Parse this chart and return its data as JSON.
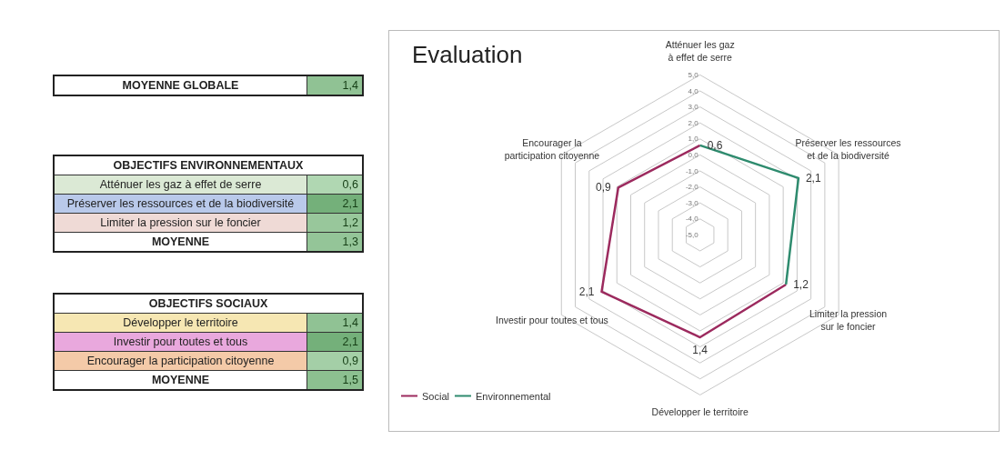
{
  "chart_data": [
    {
      "type": "other",
      "categories": [
        "MOYENNE GLOBALE"
      ],
      "values": [
        1.4
      ],
      "value_labels": [
        "1,4"
      ]
    },
    {
      "type": "other",
      "title": "OBJECTIFS ENVIRONNEMENTAUX",
      "categories": [
        "Atténuer les gaz à effet de serre",
        "Préserver les ressources et de la biodiversité",
        "Limiter la pression sur le foncier",
        "MOYENNE"
      ],
      "values": [
        0.6,
        2.1,
        1.2,
        1.3
      ],
      "value_labels": [
        "0,6",
        "2,1",
        "1,2",
        "1,3"
      ]
    },
    {
      "type": "other",
      "title": "OBJECTIFS SOCIAUX",
      "categories": [
        "Développer le territoire",
        "Investir pour toutes et tous",
        "Encourager la participation citoyenne",
        "MOYENNE"
      ],
      "values": [
        1.4,
        2.1,
        0.9,
        1.5
      ],
      "value_labels": [
        "1,4",
        "2,1",
        "0,9",
        "1,5"
      ]
    },
    {
      "type": "radar",
      "title": "Evaluation",
      "categories": [
        "Atténuer les gaz à effet de serre",
        "Préserver les ressources et de la biodiversité",
        "Limiter la pression sur le foncier",
        "Développer le territoire",
        "Investir pour toutes et tous",
        "Encourager la participation citoyenne"
      ],
      "series": [
        {
          "name": "Social",
          "color": "#9c2a5e",
          "values": [
            0.6,
            null,
            1.2,
            1.4,
            2.1,
            0.9
          ],
          "value_labels": [
            null,
            null,
            null,
            "1,4",
            "2,1",
            "0,9"
          ]
        },
        {
          "name": "Environnemental",
          "color": "#2e8b6e",
          "values": [
            0.6,
            2.1,
            1.2,
            null,
            null,
            null
          ],
          "value_labels": [
            "0,6",
            "2,1",
            "1,2",
            null,
            null,
            null
          ]
        }
      ],
      "ylim": [
        -5,
        5
      ],
      "yticks": [
        {
          "value": -5,
          "label": "-5,0"
        },
        {
          "value": -4,
          "label": "-4,0"
        },
        {
          "value": -3,
          "label": "-3,0"
        },
        {
          "value": -2,
          "label": "-2,0"
        },
        {
          "value": -1,
          "label": "-1,0"
        },
        {
          "value": 0,
          "label": "0,0"
        },
        {
          "value": 1,
          "label": "1,0"
        },
        {
          "value": 2,
          "label": "2,0"
        },
        {
          "value": 3,
          "label": "3,0"
        },
        {
          "value": 4,
          "label": "4,0"
        },
        {
          "value": 5,
          "label": "5,0"
        }
      ],
      "grid": true,
      "legend": "bottom left",
      "marker": "none"
    }
  ]
}
